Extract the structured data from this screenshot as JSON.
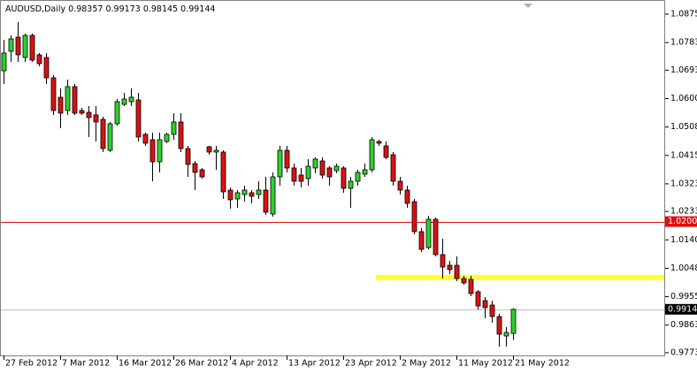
{
  "header": {
    "symbol": "AUDUSD,Daily"
  },
  "chart_data": {
    "type": "candlestick",
    "categories": [
      "27 Feb 2012",
      null,
      null,
      null,
      null,
      null,
      null,
      null,
      "7 Mar 2012",
      null,
      null,
      null,
      null,
      null,
      null,
      null,
      "16 Mar 2012",
      null,
      null,
      null,
      null,
      null,
      null,
      null,
      "26 Mar 2012",
      null,
      null,
      null,
      null,
      null,
      null,
      null,
      "4 Apr 2012",
      null,
      null,
      null,
      null,
      null,
      null,
      null,
      "13 Apr 2012",
      null,
      null,
      null,
      null,
      null,
      null,
      null,
      "23 Apr 2012",
      null,
      null,
      null,
      null,
      null,
      null,
      null,
      "2 May 2012",
      null,
      null,
      null,
      null,
      null,
      null,
      null,
      "11 May 2012",
      null,
      null,
      null,
      null,
      null,
      null,
      null,
      "21 May 2012"
    ],
    "open": [
      1.06912,
      1.07546,
      1.08006,
      1.07344,
      1.08064,
      1.07431,
      1.07344,
      1.06682,
      1.06049,
      1.05617,
      1.06394,
      1.05617,
      1.05559,
      1.05473,
      1.05329,
      1.04321,
      1.05185,
      1.05818,
      1.05905,
      1.05962,
      1.0484,
      1.04667,
      1.03947,
      1.04609,
      1.0484,
      1.05243,
      1.04379,
      1.03889,
      1.03688,
      1.04437,
      1.04264,
      1.04264,
      1.03026,
      1.02738,
      1.02882,
      1.0294,
      1.02882,
      1.03026,
      1.02248,
      1.03458,
      1.04321,
      1.03746,
      1.03515,
      1.034,
      1.03746,
      1.03976,
      1.03746,
      1.03659,
      1.03746,
      1.03083,
      1.03314,
      1.03544,
      1.03688,
      1.04609,
      1.04465,
      1.04177,
      1.03314,
      1.03026,
      1.02651,
      1.01673,
      1.01155,
      1.02076,
      1.00924,
      1.00579,
      1.00579,
      1.00147,
      1.00118,
      0.99715,
      0.99427,
      0.99283,
      0.98909,
      0.98275,
      0.98357
    ],
    "high": [
      1.0792,
      1.08064,
      1.08496,
      1.08122,
      1.08122,
      1.07488,
      1.07488,
      1.06768,
      1.06337,
      1.06625,
      1.06481,
      1.05703,
      1.05761,
      1.05761,
      1.05415,
      1.05243,
      1.05991,
      1.06193,
      1.06337,
      1.06193,
      1.04897,
      1.04897,
      1.04897,
      1.04897,
      1.05531,
      1.05531,
      1.04465,
      1.03976,
      1.03746,
      1.04465,
      1.04465,
      1.04321,
      1.03112,
      1.03026,
      1.0317,
      1.03026,
      1.03314,
      1.03458,
      1.03602,
      1.04465,
      1.04465,
      1.03889,
      1.03746,
      1.04033,
      1.04091,
      1.04091,
      1.03803,
      1.03889,
      1.03803,
      1.03458,
      1.03688,
      1.03889,
      1.04753,
      1.04667,
      1.04609,
      1.04264,
      1.03458,
      1.0317,
      1.02738,
      1.01788,
      1.02191,
      1.02133,
      1.01442,
      1.00723,
      1.00867,
      1.00233,
      1.00233,
      0.99772,
      0.99542,
      0.99427,
      0.98995,
      0.98563,
      0.99173
    ],
    "low": [
      1.06481,
      1.072,
      1.072,
      1.072,
      1.072,
      1.07056,
      1.06481,
      1.05473,
      1.05041,
      1.05473,
      1.05473,
      1.05473,
      1.04753,
      1.04609,
      1.04264,
      1.04264,
      1.05128,
      1.05761,
      1.05761,
      1.04609,
      1.04465,
      1.03314,
      1.03602,
      1.04552,
      1.04667,
      1.04264,
      1.03458,
      1.03026,
      1.034,
      1.04177,
      1.03688,
      1.02738,
      1.02421,
      1.0245,
      1.02651,
      1.02594,
      1.02738,
      1.0222,
      1.02162,
      1.0317,
      1.03602,
      1.0317,
      1.03112,
      1.0317,
      1.03573,
      1.034,
      1.0317,
      1.03573,
      1.0294,
      1.0245,
      1.0317,
      1.03458,
      1.03602,
      1.04465,
      1.04033,
      1.0317,
      1.02882,
      1.0245,
      1.01586,
      1.0101,
      1.01097,
      1.00867,
      1.00147,
      1.00291,
      1.0006,
      0.99945,
      0.99571,
      0.99139,
      0.98851,
      0.98707,
      0.97929,
      0.97929,
      0.98145
    ],
    "close": [
      1.07488,
      1.07949,
      1.07431,
      1.08064,
      1.07258,
      1.07143,
      1.06682,
      1.05617,
      1.05531,
      1.06394,
      1.05531,
      1.05531,
      1.05387,
      1.05243,
      1.04379,
      1.05185,
      1.05905,
      1.05991,
      1.06049,
      1.04753,
      1.04552,
      1.03947,
      1.04667,
      1.0484,
      1.05243,
      1.04379,
      1.03861,
      1.03602,
      1.03458,
      1.04264,
      1.04321,
      1.02968,
      1.02709,
      1.0294,
      1.03026,
      1.02824,
      1.03026,
      1.02306,
      1.03458,
      1.04321,
      1.03746,
      1.03314,
      1.03314,
      1.03803,
      1.04033,
      1.03515,
      1.03458,
      1.03803,
      1.03083,
      1.03314,
      1.03602,
      1.03688,
      1.04667,
      1.04552,
      1.04091,
      1.03314,
      1.03026,
      1.02594,
      1.01673,
      1.01097,
      1.02076,
      1.00924,
      1.00521,
      1.00435,
      1.00147,
      1.00003,
      0.99657,
      0.99254,
      0.99197,
      0.98909,
      0.98333,
      0.9839,
      0.99144
    ],
    "up_color": "#2ed12e",
    "down_color": "#dd1111",
    "ylim": [
      0.97642,
      1.09129
    ],
    "yticks": [
      1.08755,
      {
        "value": 1.0783,
        "label": "1.07830"
      },
      {
        "value": 1.0693,
        "label": "1.06930"
      },
      1.06005,
      {
        "value": 1.0508,
        "label": "1.05080"
      },
      1.04155,
      {
        "value": 1.0323,
        "label": "1.03230"
      },
      {
        "value": 1.0233,
        "label": "1.02330"
      },
      1.01405,
      {
        "value": 1.0048,
        "label": "1.00480"
      },
      0.99555,
      {
        "value": 0.9863,
        "label": "0.98630"
      },
      {
        "value": 0.9773,
        "label": "0.97730"
      }
    ],
    "levels": [
      {
        "value": 1.02,
        "label": "1.02000",
        "color": "#e01010"
      }
    ],
    "highlight_band": {
      "value": 1.0018,
      "color": "#ffff33"
    },
    "grid": false
  }
}
